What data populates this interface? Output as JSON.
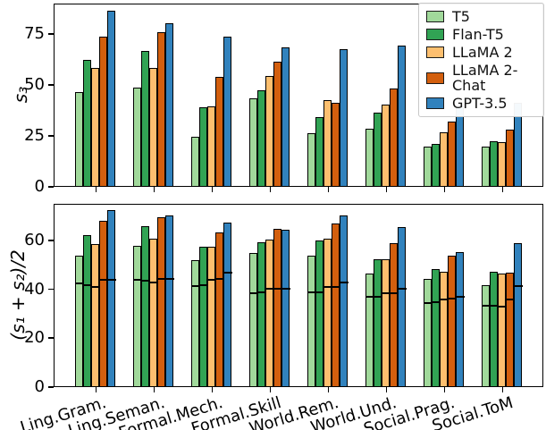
{
  "figure": {
    "background": "#ffffff",
    "legend_position": "upper right"
  },
  "legend": {
    "entries": [
      "T5",
      "Flan-T5",
      "LLaMA 2",
      "LLaMA 2-Chat",
      "GPT-3.5"
    ]
  },
  "chart_data": [
    {
      "type": "bar",
      "title": "",
      "ylabel": "s₃",
      "xlabel": "",
      "ylim": [
        0,
        90
      ],
      "yticks": [
        0,
        25,
        50,
        75
      ],
      "grid": false,
      "categories": [
        "Ling.Gram.",
        "Ling.Seman.",
        "Formal.Mech.",
        "Formal.Skill",
        "World.Rem.",
        "World.Und.",
        "Social.Prag.",
        "Social.ToM"
      ],
      "series": [
        {
          "name": "T5",
          "color": "#a1d99b",
          "values": [
            46,
            48.5,
            24,
            43,
            26,
            28,
            19.5,
            19.5
          ]
        },
        {
          "name": "Flan-T5",
          "color": "#31a354",
          "values": [
            62,
            66.5,
            38.5,
            47,
            34,
            36,
            20.5,
            22
          ]
        },
        {
          "name": "LLaMA 2",
          "color": "#fdbf6f",
          "values": [
            58,
            58,
            39,
            54,
            42,
            40,
            26.5,
            21.5
          ]
        },
        {
          "name": "LLaMA 2-Chat",
          "color": "#d35f0e",
          "values": [
            73.5,
            75.5,
            53.5,
            61,
            41,
            48,
            31.5,
            27.5
          ]
        },
        {
          "name": "GPT-3.5",
          "color": "#3182bd",
          "values": [
            86,
            80,
            73.5,
            68,
            67,
            69,
            39.5,
            41
          ]
        }
      ]
    },
    {
      "type": "bar",
      "title": "",
      "ylabel": "(s₁ + s₂)/2",
      "xlabel": "",
      "ylim": [
        0,
        75
      ],
      "yticks": [
        0,
        20,
        40,
        60
      ],
      "grid": false,
      "categories": [
        "Ling.Gram.",
        "Ling.Seman.",
        "Formal.Mech.",
        "Formal.Skill",
        "World.Rem.",
        "World.Und.",
        "Social.Prag.",
        "Social.ToM"
      ],
      "series": [
        {
          "name": "T5",
          "color": "#a1d99b",
          "values": [
            53.5,
            57.5,
            51.5,
            54.5,
            53.5,
            46,
            44,
            41.5
          ]
        },
        {
          "name": "Flan-T5",
          "color": "#31a354",
          "values": [
            62,
            65.5,
            57,
            59,
            59.5,
            52,
            48,
            47
          ]
        },
        {
          "name": "LLaMA 2",
          "color": "#fdbf6f",
          "values": [
            58,
            60.5,
            57,
            60,
            60.5,
            52,
            47,
            46
          ]
        },
        {
          "name": "LLaMA 2-Chat",
          "color": "#d35f0e",
          "values": [
            67.5,
            69,
            63,
            64.5,
            66.5,
            58.5,
            53.5,
            46.5
          ]
        },
        {
          "name": "GPT-3.5",
          "color": "#3182bd",
          "values": [
            72,
            70,
            67,
            64,
            70,
            65,
            55,
            58.5
          ]
        }
      ],
      "markers": [
        {
          "name": "T5",
          "values": [
            42,
            43.5,
            41,
            38,
            38.5,
            36.5,
            34,
            33
          ]
        },
        {
          "name": "Flan-T5",
          "values": [
            41.5,
            43,
            41.5,
            38.5,
            38.5,
            36.5,
            34.5,
            33
          ]
        },
        {
          "name": "LLaMA 2",
          "values": [
            40.5,
            42.5,
            43.5,
            40,
            40.5,
            38,
            35.5,
            32.5
          ]
        },
        {
          "name": "LLaMA 2-Chat",
          "values": [
            43.5,
            44,
            44,
            40,
            40.5,
            38,
            36,
            35.5
          ]
        },
        {
          "name": "GPT-3.5",
          "values": [
            43.5,
            44,
            46.5,
            40,
            42.5,
            40,
            36.5,
            41
          ]
        }
      ]
    }
  ]
}
